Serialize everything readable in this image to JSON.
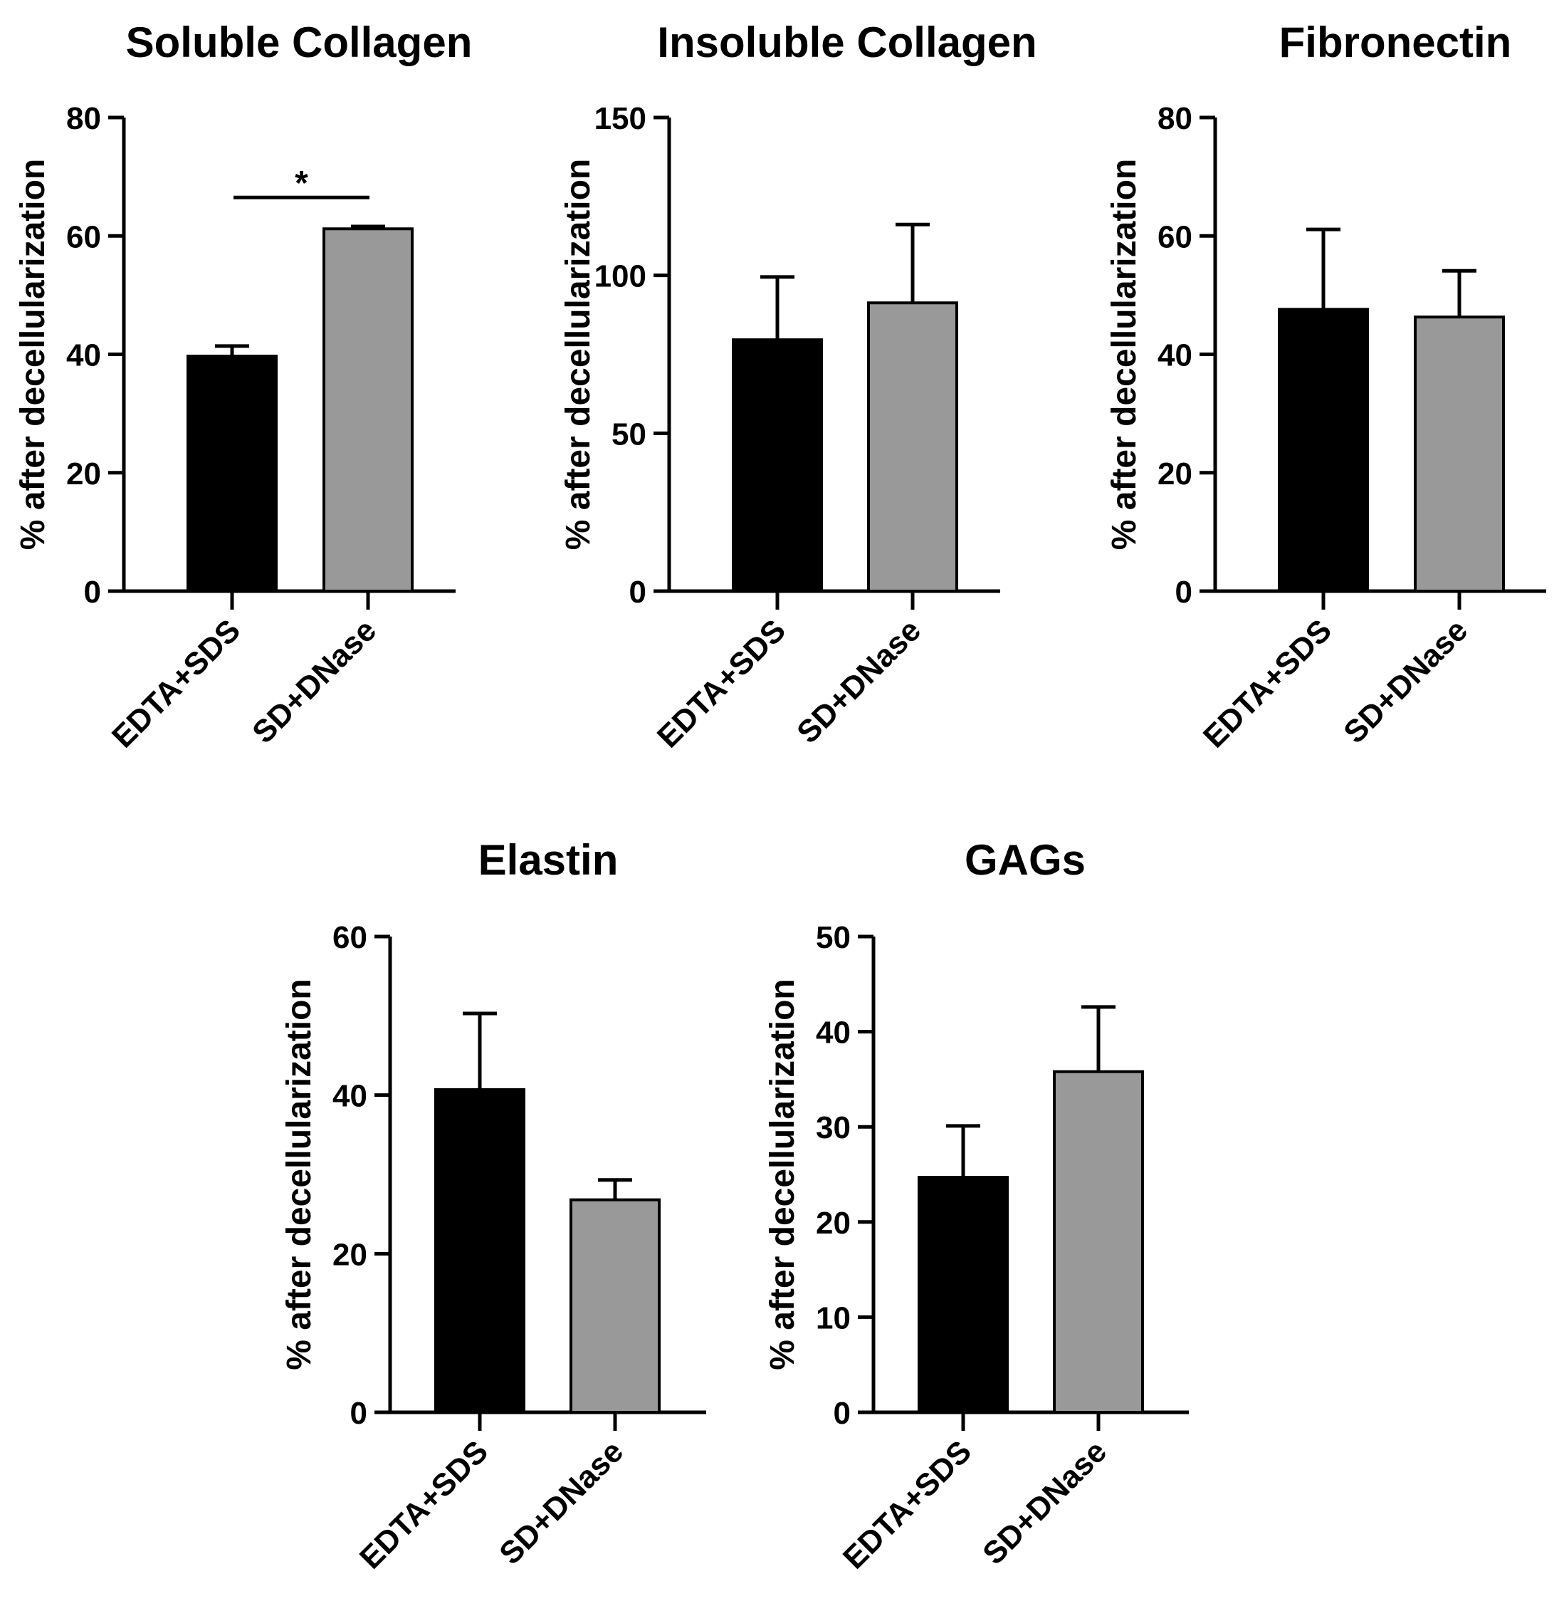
{
  "figure_colors": {
    "bar_black": "#000000",
    "bar_gray": "#999999",
    "axis": "#000000"
  },
  "chart_data": [
    {
      "type": "bar",
      "title": "Soluble Collagen",
      "ylabel": "% after decellularization",
      "xlabel": "",
      "categories": [
        "EDTA+SDS",
        "SD+DNase"
      ],
      "values": [
        39.7,
        61.2
      ],
      "errors": [
        1.7,
        0.4
      ],
      "ylim": [
        0,
        80
      ],
      "yticks": [
        0,
        20,
        40,
        60,
        80
      ],
      "significance": {
        "between": [
          0,
          1
        ],
        "level": 66.5,
        "label": "*"
      }
    },
    {
      "type": "bar",
      "title": "Insoluble Collagen",
      "ylabel": "% after decellularization",
      "xlabel": "",
      "categories": [
        "EDTA+SDS",
        "SD+DNase"
      ],
      "values": [
        79.6,
        91.3
      ],
      "errors": [
        19.9,
        24.8
      ],
      "ylim": [
        0,
        150
      ],
      "yticks": [
        0,
        50,
        100,
        150
      ]
    },
    {
      "type": "bar",
      "title": "Fibronectin",
      "ylabel": "% after decellularization",
      "xlabel": "",
      "categories": [
        "EDTA+SDS",
        "SD+DNase"
      ],
      "values": [
        47.6,
        46.3
      ],
      "errors": [
        13.5,
        7.8
      ],
      "ylim": [
        0,
        80
      ],
      "yticks": [
        0,
        20,
        40,
        60,
        80
      ]
    },
    {
      "type": "bar",
      "title": "Elastin",
      "ylabel": "% after decellularization",
      "xlabel": "",
      "categories": [
        "EDTA+SDS",
        "SD+DNase"
      ],
      "values": [
        40.7,
        26.8
      ],
      "errors": [
        9.6,
        2.5
      ],
      "ylim": [
        0,
        60
      ],
      "yticks": [
        0,
        20,
        40,
        60
      ]
    },
    {
      "type": "bar",
      "title": "GAGs",
      "ylabel": "% after decellularization",
      "xlabel": "",
      "categories": [
        "EDTA+SDS",
        "SD+DNase"
      ],
      "values": [
        24.7,
        35.8
      ],
      "errors": [
        5.4,
        6.8
      ],
      "ylim": [
        0,
        50
      ],
      "yticks": [
        0,
        10,
        20,
        30,
        40,
        50
      ]
    }
  ]
}
